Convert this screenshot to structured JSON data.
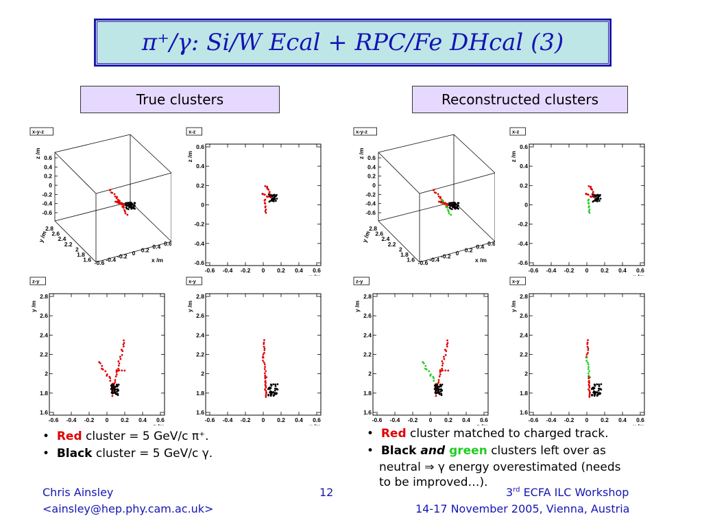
{
  "title": "π⁺/γ: Si/W Ecal + RPC/Fe DHcal (3)",
  "sections": {
    "left": "True clusters",
    "right": "Reconstructed clusters"
  },
  "panel_labels": {
    "xyz": "x-y-z",
    "xz": "x-z",
    "zy": "z-y",
    "xy": "x-y"
  },
  "axis_labels": {
    "x": "x /m",
    "y": "y /m",
    "z": "z /m"
  },
  "ticks": {
    "xz_x": [
      "-0.6",
      "-0.4",
      "-0.2",
      "0",
      "0.2",
      "0.4",
      "0.6"
    ],
    "xz_y": [
      "0.6",
      "0.4",
      "0.2",
      "0",
      "-0.2",
      "-0.4",
      "-0.6"
    ],
    "y_axis": [
      "2.8",
      "2.6",
      "2.4",
      "2.2",
      "2",
      "1.8",
      "1.6"
    ],
    "xyz_z": [
      "0.6",
      "0.4",
      "0.2",
      "0",
      "-0.2",
      "-0.4",
      "-0.6"
    ],
    "xyz_y": [
      "2.8",
      "2.6",
      "2.4",
      "2.2",
      "2",
      "1.8",
      "1.6"
    ],
    "xyz_x": [
      "-0.6",
      "-0.4",
      "-0.2",
      "0",
      "0.2",
      "0.4",
      "0.6"
    ]
  },
  "left_bullets": {
    "b1_colored": "Red",
    "b1_rest": " cluster = 5 GeV/c  π⁺.",
    "b2_colored": "Black",
    "b2_rest": " cluster = 5 GeV/c  γ."
  },
  "right_bullets": {
    "b1_colored": "Red",
    "b1_rest": " cluster matched to charged track.",
    "b2_black": "Black",
    "b2_and": " and ",
    "b2_green": "green",
    "b2_rest": " clusters left over as",
    "b2_line2": "neutral ⇒ γ energy overestimated (needs",
    "b2_line3": "to be improved…)."
  },
  "footer": {
    "author": "Chris Ainsley",
    "email": "<ainsley@hep.phy.cam.ac.uk>",
    "page": "12",
    "workshop_sup": "rd",
    "workshop_num": "3",
    "workshop": " ECFA ILC Workshop",
    "dates": "14-17 November 2005, Vienna, Austria"
  },
  "colors": {
    "red": "#e00000",
    "black": "#000000",
    "green": "#22cc22",
    "title": "#1414b4"
  }
}
